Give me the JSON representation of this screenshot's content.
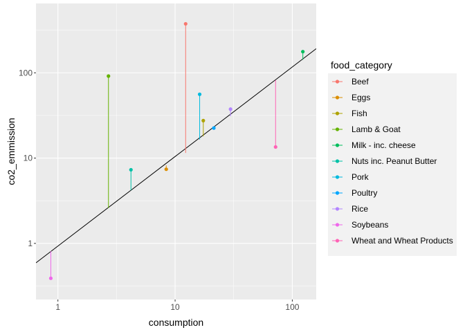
{
  "chart_data": {
    "type": "scatter",
    "subtype": "lollipop",
    "xlabel": "consumption",
    "ylabel": "co2_emmission",
    "x_scale": "log10",
    "y_scale": "log10",
    "xlim": [
      0.65,
      160
    ],
    "ylim": [
      0.22,
      650
    ],
    "x_ticks": [
      {
        "value": 1,
        "label": "1"
      },
      {
        "value": 10,
        "label": "10"
      },
      {
        "value": 100,
        "label": "100"
      }
    ],
    "y_ticks": [
      {
        "value": 1,
        "label": "1"
      },
      {
        "value": 10,
        "label": "10"
      },
      {
        "value": 100,
        "label": "100"
      }
    ],
    "grid": true,
    "panel_background": "#ebebeb",
    "reference_line": {
      "slope": 1.05,
      "intercept_at_x1": 0.93,
      "color": "#000000"
    },
    "legend": {
      "title": "food_category",
      "position": "right"
    },
    "series": [
      {
        "name": "Beef",
        "color": "#F8766D",
        "x": 12.3,
        "y": 375,
        "baseline": 11.5
      },
      {
        "name": "Eggs",
        "color": "#DB8E00",
        "x": 8.4,
        "y": 7.4,
        "baseline": 8.2
      },
      {
        "name": "Fish",
        "color": "#AEA200",
        "x": 17.4,
        "y": 27.5,
        "baseline": 18
      },
      {
        "name": "Lamb & Goat",
        "color": "#64B200",
        "x": 2.7,
        "y": 91.5,
        "baseline": 2.6
      },
      {
        "name": "Milk - inc. cheese",
        "color": "#00BD5C",
        "x": 123,
        "y": 177,
        "baseline": 142
      },
      {
        "name": "Nuts inc. Peanut Butter",
        "color": "#00C1A7",
        "x": 4.2,
        "y": 7.3,
        "baseline": 4.2
      },
      {
        "name": "Pork",
        "color": "#00BADE",
        "x": 16.2,
        "y": 56,
        "baseline": 16.5
      },
      {
        "name": "Poultry",
        "color": "#00A6FF",
        "x": 21.4,
        "y": 22.5,
        "baseline": 22
      },
      {
        "name": "Rice",
        "color": "#B385FF",
        "x": 29.7,
        "y": 37.5,
        "baseline": 31
      },
      {
        "name": "Soybeans",
        "color": "#EF67EB",
        "x": 0.87,
        "y": 0.39,
        "baseline": 0.81
      },
      {
        "name": "Wheat and Wheat Products",
        "color": "#FF63B6",
        "x": 72,
        "y": 13.5,
        "baseline": 82
      }
    ]
  }
}
